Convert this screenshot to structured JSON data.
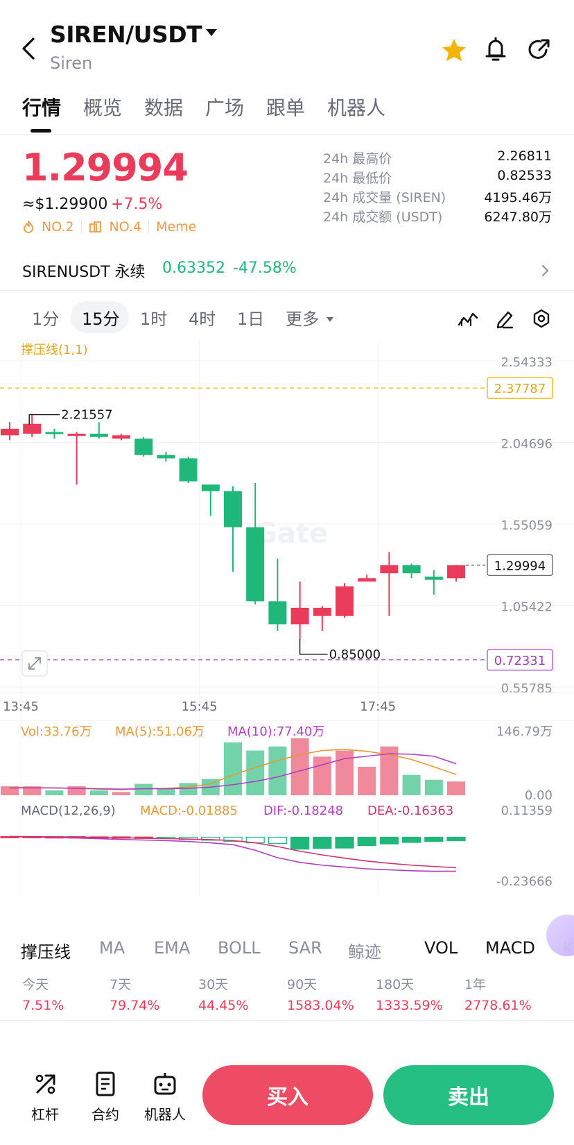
{
  "header": {
    "pair": "SIREN/USDT",
    "name": "Siren"
  },
  "tabs": [
    "行情",
    "概览",
    "数据",
    "广场",
    "跟单",
    "机器人"
  ],
  "price": {
    "last": "1.29994",
    "fiat": "≈$1.29900",
    "change": "+7.5%",
    "rank_hot": "NO.2",
    "rank_sector": "NO.4",
    "category": "Meme"
  },
  "stats": [
    {
      "label": "24h 最高价",
      "value": "2.26811"
    },
    {
      "label": "24h 最低价",
      "value": "0.82533"
    },
    {
      "label": "24h 成交量 (SIREN)",
      "value": "4195.46万"
    },
    {
      "label": "24h 成交额 (USDT)",
      "value": "6247.80万"
    }
  ],
  "perp": {
    "label": "SIRENUSDT 永续",
    "price": "0.63352",
    "change": "-47.58%"
  },
  "intervals": [
    "1分",
    "15分",
    "1时",
    "4时",
    "1日",
    "更多"
  ],
  "chart_data": {
    "type": "candlestick",
    "indicator_label": "撑压线(1,1)",
    "price_axis": [
      "2.54333",
      "2.04696",
      "1.55059",
      "1.05422",
      "0.55785"
    ],
    "price_ylim": [
      0.55785,
      2.54333
    ],
    "resistance": {
      "value": 2.37787,
      "label": "2.37787"
    },
    "support": {
      "value": 0.72331,
      "label": "0.72331"
    },
    "last_price_label": "1.29994",
    "last_price": 1.29994,
    "high_marker": {
      "label": "2.21557",
      "value": 2.21557,
      "index": 1
    },
    "low_marker": {
      "label": "0.85000",
      "value": 0.85,
      "index": 13
    },
    "time_labels": [
      {
        "label": "13:45",
        "index": 0
      },
      {
        "label": "15:45",
        "index": 8
      },
      {
        "label": "17:45",
        "index": 16
      }
    ],
    "candles": [
      {
        "o": 2.09,
        "h": 2.17,
        "l": 2.06,
        "c": 2.13
      },
      {
        "o": 2.1,
        "h": 2.22,
        "l": 2.08,
        "c": 2.16
      },
      {
        "o": 2.11,
        "h": 2.13,
        "l": 2.07,
        "c": 2.1
      },
      {
        "o": 2.1,
        "h": 2.11,
        "l": 1.79,
        "c": 2.1
      },
      {
        "o": 2.1,
        "h": 2.17,
        "l": 2.07,
        "c": 2.08
      },
      {
        "o": 2.07,
        "h": 2.1,
        "l": 2.06,
        "c": 2.09
      },
      {
        "o": 2.07,
        "h": 2.08,
        "l": 1.96,
        "c": 1.97
      },
      {
        "o": 1.97,
        "h": 1.99,
        "l": 1.93,
        "c": 1.95
      },
      {
        "o": 1.95,
        "h": 1.96,
        "l": 1.8,
        "c": 1.81
      },
      {
        "o": 1.79,
        "h": 1.79,
        "l": 1.6,
        "c": 1.75
      },
      {
        "o": 1.75,
        "h": 1.78,
        "l": 1.26,
        "c": 1.53
      },
      {
        "o": 1.53,
        "h": 1.8,
        "l": 1.06,
        "c": 1.08
      },
      {
        "o": 1.08,
        "h": 1.34,
        "l": 0.9,
        "c": 0.94
      },
      {
        "o": 0.94,
        "h": 1.2,
        "l": 0.85,
        "c": 1.04
      },
      {
        "o": 0.99,
        "h": 1.05,
        "l": 0.9,
        "c": 1.04
      },
      {
        "o": 0.99,
        "h": 1.19,
        "l": 0.98,
        "c": 1.17
      },
      {
        "o": 1.2,
        "h": 1.24,
        "l": 1.2,
        "c": 1.22
      },
      {
        "o": 1.25,
        "h": 1.38,
        "l": 0.99,
        "c": 1.3
      },
      {
        "o": 1.3,
        "h": 1.31,
        "l": 1.22,
        "c": 1.25
      },
      {
        "o": 1.23,
        "h": 1.27,
        "l": 1.12,
        "c": 1.21
      },
      {
        "o": 1.22,
        "h": 1.3,
        "l": 1.2,
        "c": 1.29994
      }
    ],
    "volume": {
      "labels": [
        "Vol:33.76万",
        "MA(5):51.06万",
        "MA(10):77.40万"
      ],
      "axis": [
        "146.79万",
        "0.00"
      ],
      "ymax": 146.79,
      "bars": [
        22,
        22,
        12,
        22,
        12,
        8,
        28,
        16,
        30,
        40,
        130,
        110,
        120,
        140,
        95,
        110,
        70,
        120,
        50,
        38,
        33.76
      ],
      "ma5": [
        20,
        19,
        18,
        17,
        15,
        14,
        16,
        17,
        20,
        28,
        50,
        68,
        85,
        100,
        110,
        113,
        108,
        100,
        88,
        70,
        51.06
      ],
      "ma10": [
        18,
        18,
        18,
        17,
        16,
        15,
        16,
        16,
        17,
        20,
        26,
        34,
        45,
        60,
        75,
        90,
        96,
        102,
        101,
        96,
        77.4
      ]
    },
    "macd": {
      "labels": [
        "MACD(12,26,9)",
        "MACD:-0.01885",
        "DIF:-0.18248",
        "DEA:-0.16363"
      ],
      "axis": [
        "0.11359",
        "-0.23666"
      ],
      "ylim": [
        -0.23666,
        0.11359
      ],
      "hist": [
        0.004,
        0.004,
        0.003,
        0.003,
        0.002,
        0.002,
        0.001,
        -0.006,
        -0.012,
        -0.016,
        -0.022,
        -0.03,
        -0.034,
        -0.064,
        -0.06,
        -0.058,
        -0.045,
        -0.036,
        -0.028,
        -0.022,
        -0.01885
      ],
      "dif": [
        0.003,
        0.001,
        -0.001,
        -0.004,
        -0.008,
        -0.012,
        -0.015,
        -0.018,
        -0.023,
        -0.03,
        -0.04,
        -0.07,
        -0.11,
        -0.135,
        -0.15,
        -0.16,
        -0.17,
        -0.175,
        -0.18,
        -0.183,
        -0.18248
      ],
      "dea": [
        0.004,
        0.003,
        0.002,
        0.001,
        -0.001,
        -0.003,
        -0.005,
        -0.007,
        -0.01,
        -0.013,
        -0.018,
        -0.03,
        -0.05,
        -0.075,
        -0.095,
        -0.112,
        -0.128,
        -0.14,
        -0.15,
        -0.157,
        -0.16363
      ]
    }
  },
  "indicator_tabs": [
    "撑压线",
    "MA",
    "EMA",
    "BOLL",
    "SAR",
    "鲸迹",
    "VOL",
    "MACD",
    "K"
  ],
  "performance": [
    {
      "label": "今天",
      "value": "7.51%"
    },
    {
      "label": "7天",
      "value": "79.74%"
    },
    {
      "label": "30天",
      "value": "44.45%"
    },
    {
      "label": "90天",
      "value": "1583.04%"
    },
    {
      "label": "180天",
      "value": "1333.59%"
    },
    {
      "label": "1年",
      "value": "2778.61%"
    }
  ],
  "bottom": {
    "items": [
      "杠杆",
      "合约",
      "机器人"
    ],
    "buy": "买入",
    "sell": "卖出"
  },
  "colors": {
    "up": "#ea3b5a",
    "down": "#20b77a",
    "accent": "#f0b90b"
  }
}
